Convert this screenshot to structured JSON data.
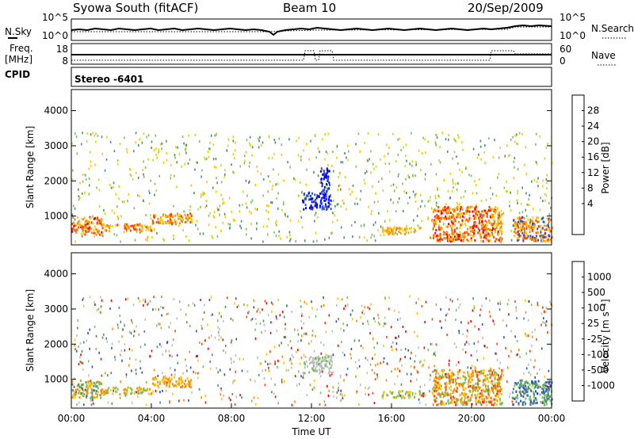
{
  "header": {
    "station": "Syowa South (fitACF)",
    "beam": "Beam 10",
    "date": "20/Sep/2009"
  },
  "status_panel": {
    "nsky_label": "N.Sky",
    "nsearch_label": "N.Search",
    "freq_label": "Freq.",
    "freq_unit": "[MHz]",
    "nave_label": "Nave",
    "cpid_label": "CPID",
    "cpid_value": "Stereo -6401",
    "noise_ticks_left": [
      "10^5",
      "10^0"
    ],
    "noise_ticks_right": [
      "10^5",
      "10^0"
    ],
    "freq_ticks": [
      "18",
      "8"
    ],
    "nave_ticks": [
      "60",
      "0"
    ]
  },
  "chart_data": [
    {
      "type": "heatmap",
      "name": "power-panel",
      "ylabel": "Slant Range [km]",
      "yticks": [
        1000,
        2000,
        3000,
        4000
      ],
      "ylim": [
        180,
        4600
      ],
      "xlim": [
        0,
        24
      ],
      "colorbar_label": "Power [dB]",
      "colorbar_ticks": [
        "28",
        "24",
        "20",
        "16",
        "12",
        "8",
        "4"
      ],
      "colorbar_colors": [
        "#0000ff",
        "#2c52c0",
        "#4b9070",
        "#7bc060",
        "#d7d700",
        "#ffc400",
        "#ff8c00",
        "#ff4500",
        "#ff0000"
      ],
      "clusters": [
        {
          "t0": 0.0,
          "t1": 1.5,
          "r0": 500,
          "r1": 1000,
          "colors": [
            "#ff4500",
            "#ff8c00",
            "#ffc400",
            "#ff0000"
          ]
        },
        {
          "t0": 1.5,
          "t1": 4.0,
          "r0": 600,
          "r1": 800,
          "colors": [
            "#ff4500",
            "#ff8c00",
            "#ffc400"
          ]
        },
        {
          "t0": 4.0,
          "t1": 6.0,
          "r0": 800,
          "r1": 1100,
          "colors": [
            "#ff8c00",
            "#ffc400",
            "#ff4500"
          ]
        },
        {
          "t0": 11.5,
          "t1": 13.0,
          "r0": 1200,
          "r1": 1700,
          "colors": [
            "#0000ff",
            "#2c52c0"
          ]
        },
        {
          "t0": 12.4,
          "t1": 12.9,
          "r0": 1700,
          "r1": 2400,
          "colors": [
            "#0000ff",
            "#2c52c0"
          ]
        },
        {
          "t0": 15.5,
          "t1": 17.5,
          "r0": 500,
          "r1": 700,
          "colors": [
            "#ff8c00",
            "#ffc400"
          ]
        },
        {
          "t0": 18.0,
          "t1": 21.5,
          "r0": 300,
          "r1": 1300,
          "colors": [
            "#ff0000",
            "#ff4500",
            "#ff8c00",
            "#ffc400"
          ]
        },
        {
          "t0": 22.0,
          "t1": 24.0,
          "r0": 300,
          "r1": 1000,
          "colors": [
            "#ff4500",
            "#ff8c00",
            "#ffc400",
            "#2c52c0"
          ]
        }
      ]
    },
    {
      "type": "heatmap",
      "name": "velocity-panel",
      "ylabel": "Slant Range [km]",
      "yticks": [
        1000,
        2000,
        3000,
        4000
      ],
      "ylim": [
        180,
        4600
      ],
      "xlim": [
        0,
        24
      ],
      "xticks": [
        "00:00",
        "04:00",
        "08:00",
        "12:00",
        "16:00",
        "20:00",
        "00:00"
      ],
      "xlabel": "Time UT",
      "colorbar_label": "Velocity [m s⁻¹]",
      "colorbar_ticks": [
        "1000",
        "500",
        "100",
        "25",
        "-25",
        "-100",
        "-500",
        "-1000"
      ],
      "colorbar_colors": [
        "#ff0000",
        "#ff4500",
        "#ff8c00",
        "#ffc400",
        "#bdbdbd",
        "#bdbdbd",
        "#7bc060",
        "#4b9070",
        "#2c52c0"
      ],
      "clusters": [
        {
          "t0": 0.0,
          "t1": 1.5,
          "r0": 500,
          "r1": 1000,
          "colors": [
            "#ff8c00",
            "#ffc400",
            "#4b9070",
            "#7bc060"
          ]
        },
        {
          "t0": 1.5,
          "t1": 4.0,
          "r0": 600,
          "r1": 800,
          "colors": [
            "#ffc400",
            "#7bc060",
            "#ff8c00"
          ]
        },
        {
          "t0": 4.0,
          "t1": 6.0,
          "r0": 800,
          "r1": 1100,
          "colors": [
            "#ff8c00",
            "#ffc400"
          ]
        },
        {
          "t0": 11.5,
          "t1": 13.0,
          "r0": 1200,
          "r1": 1700,
          "colors": [
            "#bdbdbd",
            "#bdbdbd",
            "#7bc060"
          ]
        },
        {
          "t0": 15.5,
          "t1": 17.5,
          "r0": 500,
          "r1": 700,
          "colors": [
            "#7bc060",
            "#ffc400"
          ]
        },
        {
          "t0": 18.0,
          "t1": 21.5,
          "r0": 300,
          "r1": 1300,
          "colors": [
            "#ff8c00",
            "#ffc400",
            "#ff4500",
            "#7bc060"
          ]
        },
        {
          "t0": 22.0,
          "t1": 24.0,
          "r0": 300,
          "r1": 1000,
          "colors": [
            "#2c52c0",
            "#4b9070",
            "#7bc060"
          ]
        }
      ]
    }
  ]
}
